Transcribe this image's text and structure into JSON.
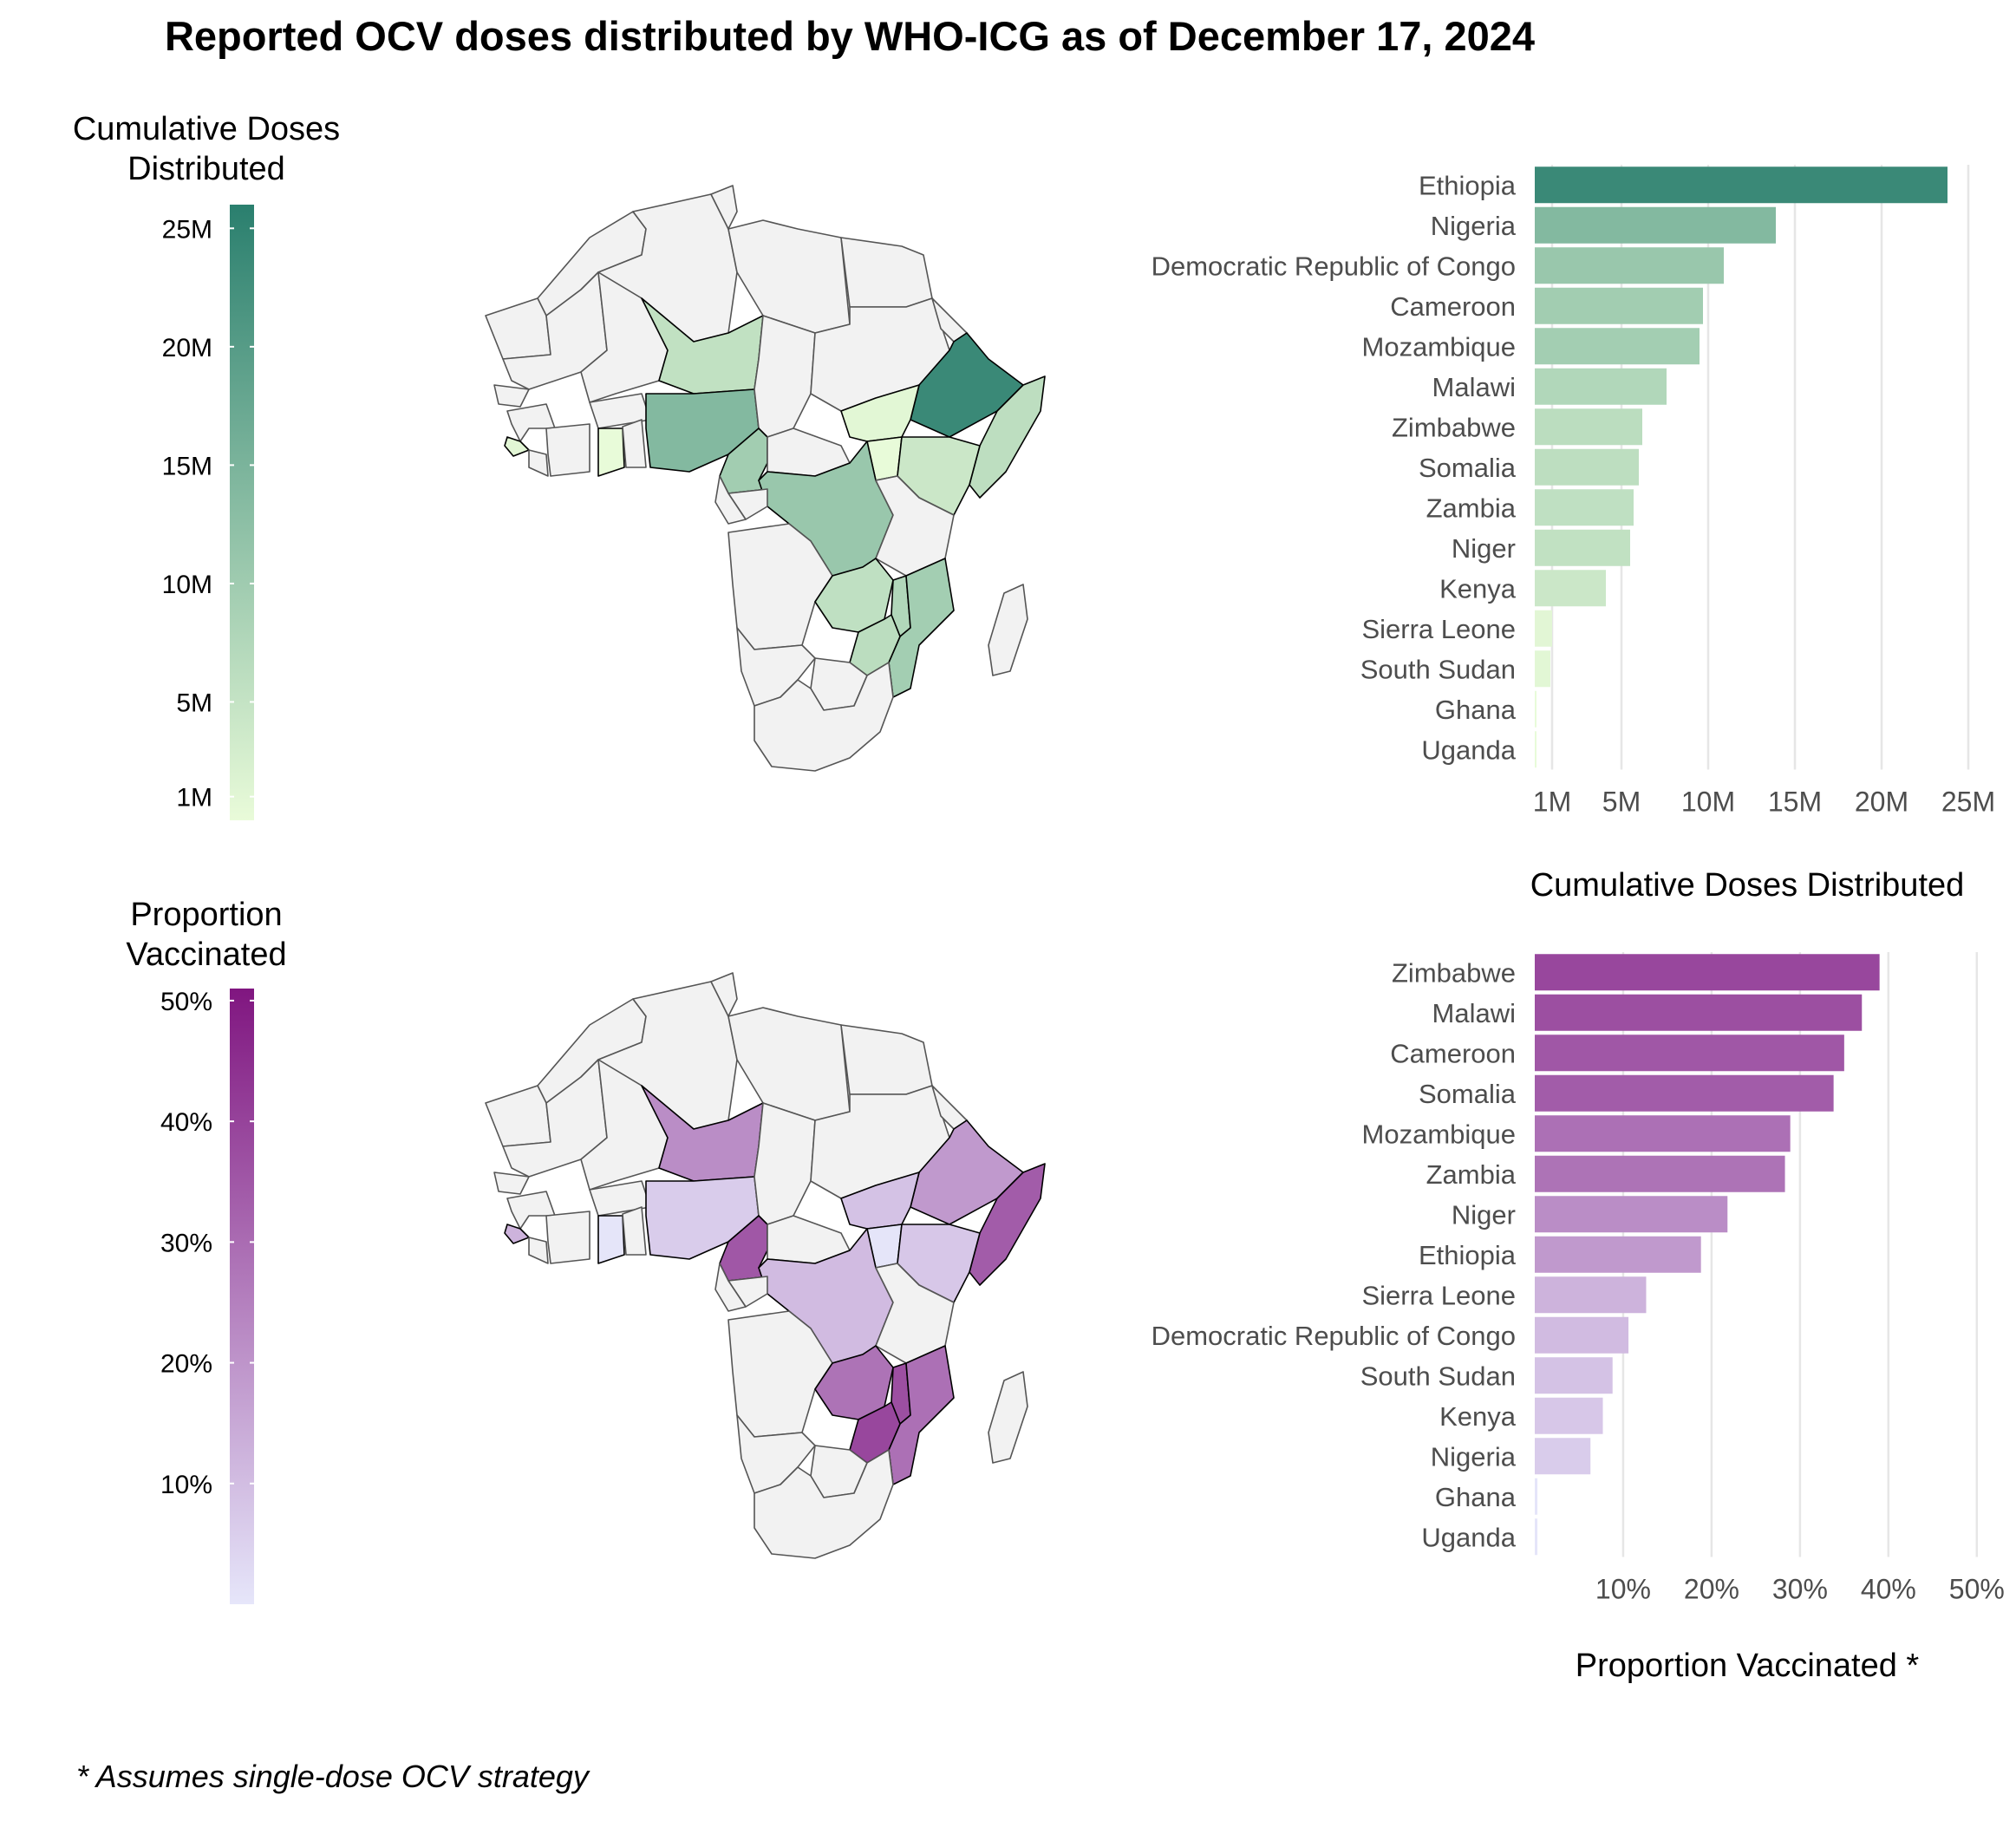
{
  "title": "Reported OCV doses distributed by WHO-ICG as of December 17, 2024",
  "footnote": "* Assumes single-dose OCV strategy",
  "colors": {
    "doses_low": "#e9fbd9",
    "doses_high": "#2a7f6e",
    "prop_low": "#e6e6fa",
    "prop_high": "#801680",
    "land": "#f2f2f2",
    "grid": "#e6e6e6"
  },
  "legends": {
    "doses": {
      "title_line1": "Cumulative Doses",
      "title_line2": "Distributed",
      "ticks": [
        "25M",
        "20M",
        "15M",
        "10M",
        "5M",
        "1M"
      ],
      "tick_values": [
        25,
        20,
        15,
        10,
        5,
        1
      ],
      "range": [
        0,
        26
      ]
    },
    "prop": {
      "title_line1": "Proportion",
      "title_line2": "Vaccinated",
      "ticks": [
        "50%",
        "40%",
        "30%",
        "20%",
        "10%"
      ],
      "tick_values": [
        50,
        40,
        30,
        20,
        10
      ],
      "range": [
        0,
        51
      ]
    }
  },
  "chart_data": [
    {
      "type": "bar",
      "orientation": "horizontal",
      "title": "",
      "xlabel": "Cumulative Doses Distributed",
      "ylabel": "",
      "categories": [
        "Ethiopia",
        "Nigeria",
        "Democratic Republic of Congo",
        "Cameroon",
        "Mozambique",
        "Malawi",
        "Zimbabwe",
        "Somalia",
        "Zambia",
        "Niger",
        "Kenya",
        "Sierra Leone",
        "South Sudan",
        "Ghana",
        "Uganda"
      ],
      "values": [
        23.8,
        13.9,
        10.9,
        9.7,
        9.5,
        7.6,
        6.2,
        6.0,
        5.7,
        5.5,
        4.1,
        1.0,
        0.9,
        0.1,
        0.1
      ],
      "unit": "M",
      "xlim": [
        0,
        26
      ],
      "xticks": [
        "1M",
        "5M",
        "10M",
        "15M",
        "20M",
        "25M"
      ],
      "xtick_values": [
        1,
        5,
        10,
        15,
        20,
        25
      ]
    },
    {
      "type": "bar",
      "orientation": "horizontal",
      "title": "",
      "xlabel": "Proportion Vaccinated *",
      "ylabel": "",
      "categories": [
        "Zimbabwe",
        "Malawi",
        "Cameroon",
        "Somalia",
        "Mozambique",
        "Zambia",
        "Niger",
        "Ethiopia",
        "Sierra Leone",
        "Democratic Republic of Congo",
        "South Sudan",
        "Kenya",
        "Nigeria",
        "Ghana",
        "Uganda"
      ],
      "values": [
        39.0,
        37.0,
        35.0,
        33.8,
        28.9,
        28.3,
        21.8,
        18.8,
        12.6,
        10.6,
        8.8,
        7.7,
        6.3,
        0.3,
        0.3
      ],
      "unit": "%",
      "xlim": [
        0,
        51
      ],
      "xticks": [
        "10%",
        "20%",
        "30%",
        "40%",
        "50%"
      ],
      "xtick_values": [
        10,
        20,
        30,
        40,
        50
      ]
    }
  ]
}
